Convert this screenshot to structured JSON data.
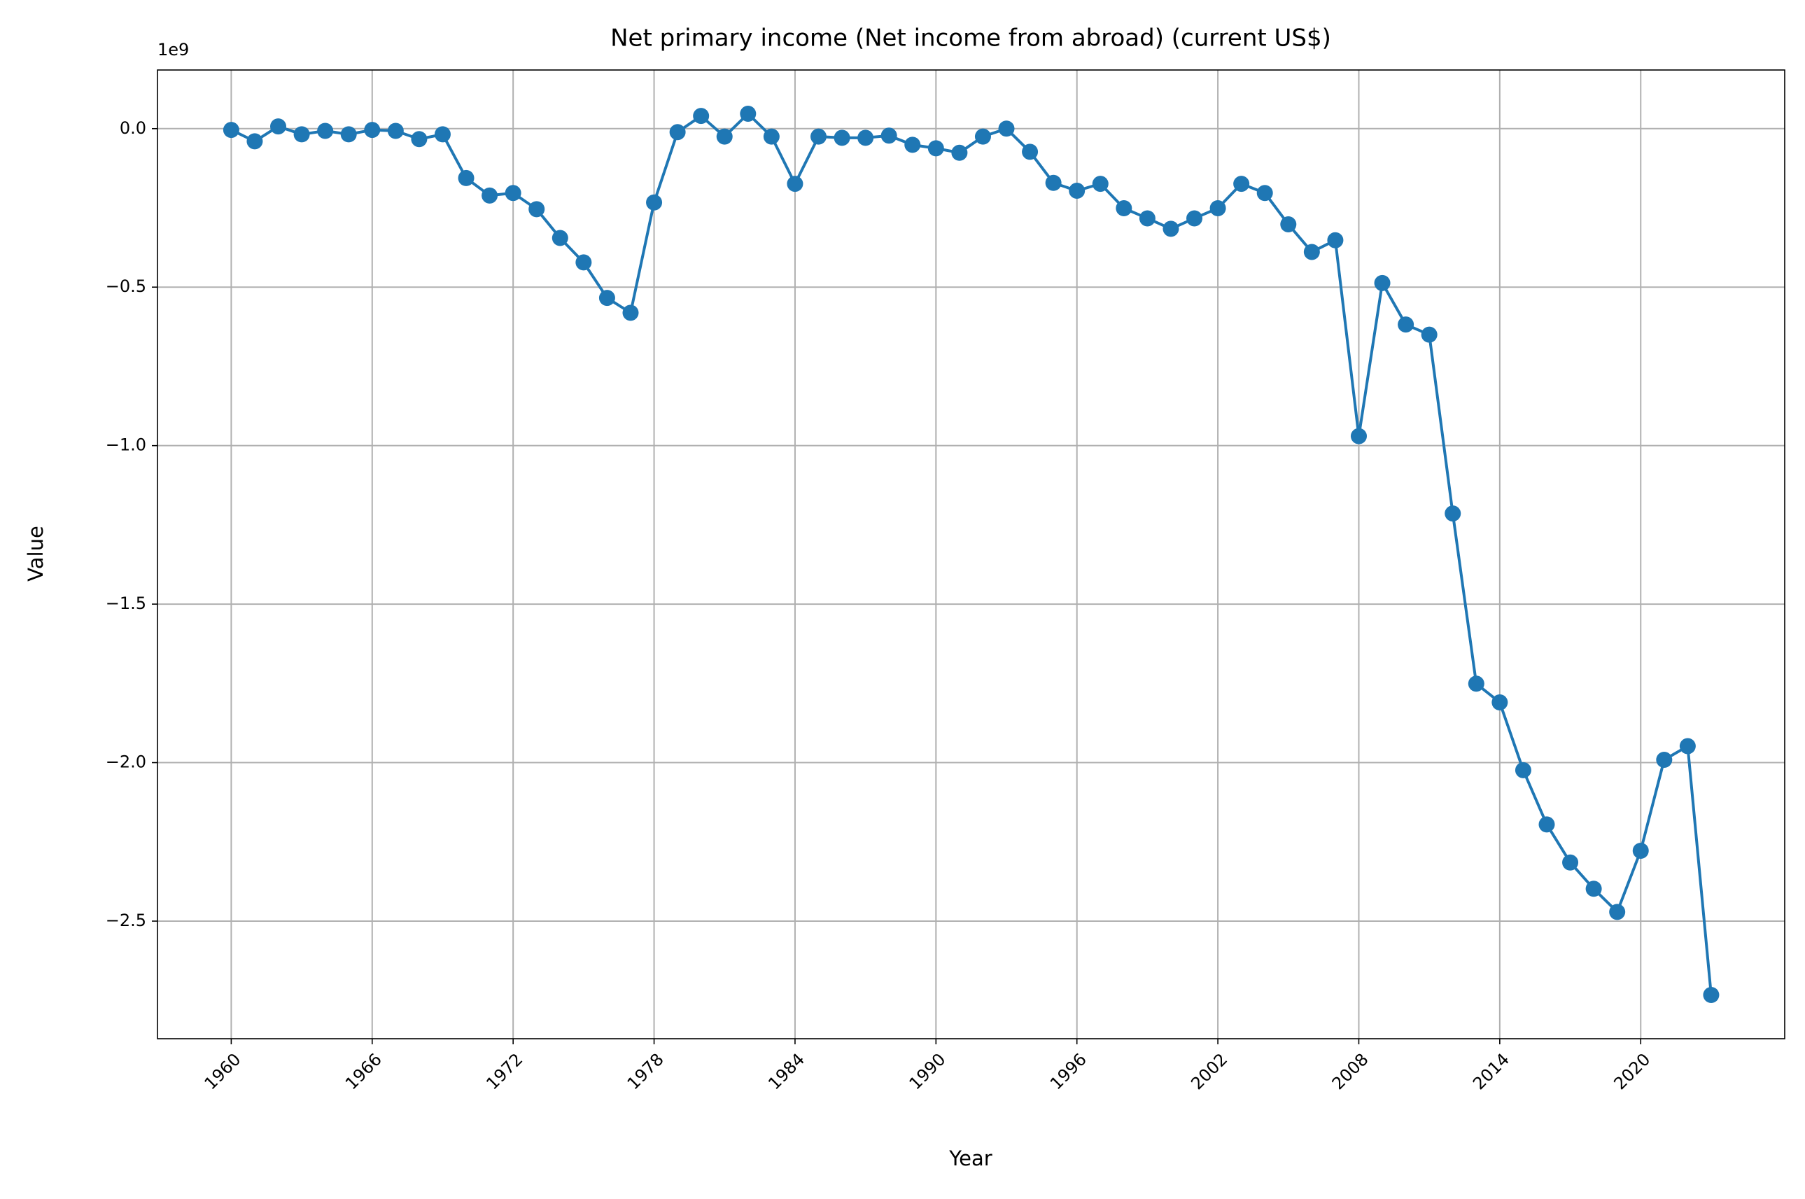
{
  "chart_data": {
    "type": "line",
    "title": "Net primary income (Net income from abroad) (current US$)",
    "x_label": "Year",
    "y_label": "Value",
    "y_offset_label": "1e9",
    "x": [
      1960,
      1961,
      1962,
      1963,
      1964,
      1965,
      1966,
      1967,
      1968,
      1969,
      1970,
      1971,
      1972,
      1973,
      1974,
      1975,
      1976,
      1977,
      1978,
      1979,
      1980,
      1981,
      1982,
      1983,
      1984,
      1985,
      1986,
      1987,
      1988,
      1989,
      1990,
      1991,
      1992,
      1993,
      1994,
      1995,
      1996,
      1997,
      1998,
      1999,
      2000,
      2001,
      2002,
      2003,
      2004,
      2005,
      2006,
      2007,
      2008,
      2009,
      2010,
      2011,
      2012,
      2013,
      2014,
      2015,
      2016,
      2017,
      2018,
      2019,
      2020,
      2021,
      2022,
      2023
    ],
    "values": [
      -4000000,
      -40000000,
      7000000,
      -18000000,
      -7000000,
      -18000000,
      -4000000,
      -7000000,
      -33000000,
      -18000000,
      -156000000,
      -211000000,
      -203000000,
      -254000000,
      -345000000,
      -422000000,
      -534000000,
      -581000000,
      -233000000,
      -11000000,
      40000000,
      -25000000,
      47000000,
      -25000000,
      -174000000,
      -25000000,
      -29000000,
      -29000000,
      -22000000,
      -51000000,
      -62000000,
      -76000000,
      -25000000,
      0,
      -73000000,
      -171000000,
      -196000000,
      -174000000,
      -251000000,
      -283000000,
      -316000000,
      -283000000,
      -251000000,
      -174000000,
      -203000000,
      -302000000,
      -389000000,
      -352000000,
      -970000000,
      -487000000,
      -618000000,
      -650000000,
      -1214000000,
      -1751000000,
      -1810000000,
      -2024000000,
      -2195000000,
      -2315000000,
      -2398000000,
      -2471000000,
      -2278000000,
      -1991000000,
      -1948000000,
      -2733000000
    ],
    "color": "#1f77b4",
    "xlim": [
      1956.86,
      2026.13
    ],
    "xticks": [
      1960,
      1966,
      1972,
      1978,
      1984,
      1990,
      1996,
      2002,
      2008,
      2014,
      2020
    ],
    "ylim": [
      -2871000000,
      185000000
    ],
    "yticks": [
      {
        "value": 0,
        "label": "0.0"
      },
      {
        "value": -500000000,
        "label": "−0.5"
      },
      {
        "value": -1000000000,
        "label": "−1.0"
      },
      {
        "value": -1500000000,
        "label": "−1.5"
      },
      {
        "value": -2000000000,
        "label": "−2.0"
      },
      {
        "value": -2500000000,
        "label": "−2.5"
      }
    ],
    "grid": true
  }
}
